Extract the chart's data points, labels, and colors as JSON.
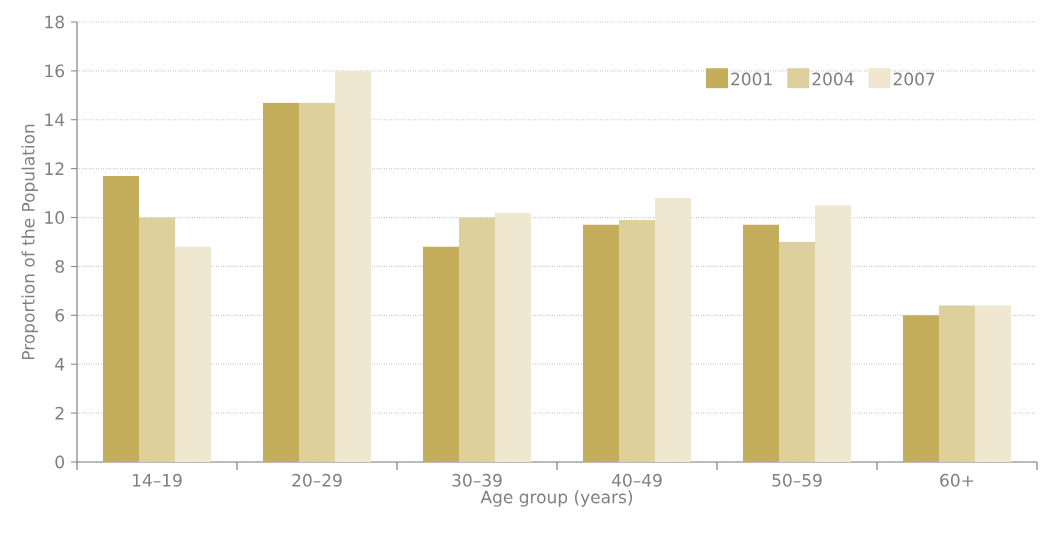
{
  "chart_data": {
    "type": "bar",
    "xlabel": "Age group (years)",
    "ylabel": "Proportion of the Population",
    "categories": [
      "14–19",
      "20–29",
      "30–39",
      "40–49",
      "50–59",
      "60+"
    ],
    "series": [
      {
        "name": "2001",
        "color": "#c4ae5b",
        "values": [
          11.7,
          14.7,
          8.8,
          9.7,
          9.7,
          6.0
        ]
      },
      {
        "name": "2004",
        "color": "#ded09c",
        "values": [
          10.0,
          14.7,
          10.0,
          9.9,
          9.0,
          6.4
        ]
      },
      {
        "name": "2007",
        "color": "#efe7cf",
        "values": [
          8.8,
          16.0,
          10.2,
          10.8,
          10.5,
          6.4
        ]
      }
    ],
    "ylim": [
      0,
      18
    ],
    "yticks": [
      0,
      2,
      4,
      6,
      8,
      10,
      12,
      14,
      16,
      18
    ],
    "grid": "y",
    "legend": "top right"
  }
}
